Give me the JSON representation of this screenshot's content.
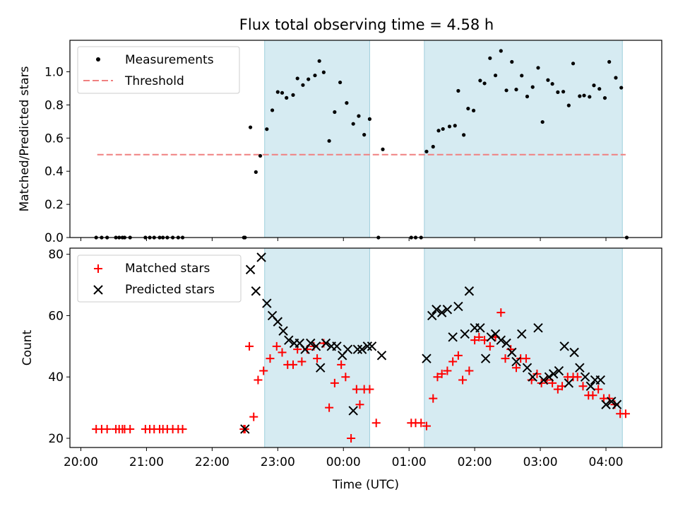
{
  "figure": {
    "title": "Flux total observing time = 4.58 h"
  },
  "chart_data": [
    {
      "type": "scatter",
      "ylabel": "Matched/Predicted stars",
      "xlim": [
        "19:50",
        "04:51"
      ],
      "ylim": [
        0,
        1.19
      ],
      "yticks": [
        0.0,
        0.2,
        0.4,
        0.6,
        0.8,
        1.0
      ],
      "ytick_labels": [
        "0.0",
        "0.2",
        "0.4",
        "0.6",
        "0.8",
        "1.0"
      ],
      "grid": false,
      "legend_position": "upper-left",
      "shaded_spans": [
        [
          "22:48",
          "00:24"
        ],
        [
          "01:14",
          "04:15"
        ]
      ],
      "threshold": {
        "name": "Threshold",
        "value": 0.5,
        "x_range": [
          "20:15",
          "04:18"
        ],
        "color": "#f08080"
      },
      "series": [
        {
          "name": "Measurements",
          "color": "#000000",
          "points": [
            [
              "20:14",
              0
            ],
            [
              "20:19",
              0
            ],
            [
              "20:24",
              0
            ],
            [
              "20:32",
              0
            ],
            [
              "20:35",
              0
            ],
            [
              "20:38",
              0
            ],
            [
              "20:40",
              0
            ],
            [
              "20:45",
              0
            ],
            [
              "20:59",
              0
            ],
            [
              "21:03",
              0
            ],
            [
              "21:07",
              0
            ],
            [
              "21:12",
              0
            ],
            [
              "21:15",
              0
            ],
            [
              "21:19",
              0
            ],
            [
              "21:24",
              0
            ],
            [
              "21:29",
              0
            ],
            [
              "21:33",
              0
            ],
            [
              "22:29",
              0
            ],
            [
              "22:30",
              0
            ],
            [
              "22:35",
              0.665
            ],
            [
              "22:40",
              0.395
            ],
            [
              "22:44",
              0.493
            ],
            [
              "22:50",
              0.654
            ],
            [
              "22:55",
              0.768
            ],
            [
              "23:00",
              0.878
            ],
            [
              "23:04",
              0.873
            ],
            [
              "23:08",
              0.843
            ],
            [
              "23:14",
              0.86
            ],
            [
              "23:18",
              0.96
            ],
            [
              "23:23",
              0.92
            ],
            [
              "23:28",
              0.955
            ],
            [
              "23:34",
              0.978
            ],
            [
              "23:38",
              1.065
            ],
            [
              "23:42",
              0.997
            ],
            [
              "23:47",
              0.583
            ],
            [
              "23:52",
              0.757
            ],
            [
              "23:57",
              0.936
            ],
            [
              "00:03",
              0.812
            ],
            [
              "00:09",
              0.686
            ],
            [
              "00:14",
              0.733
            ],
            [
              "00:19",
              0.62
            ],
            [
              "00:24",
              0.715
            ],
            [
              "00:32",
              0.0
            ],
            [
              "00:36",
              0.532
            ],
            [
              "01:02",
              0
            ],
            [
              "01:06",
              0
            ],
            [
              "01:11",
              0
            ],
            [
              "01:16",
              0.519
            ],
            [
              "01:22",
              0.548
            ],
            [
              "01:27",
              0.645
            ],
            [
              "01:31",
              0.655
            ],
            [
              "01:37",
              0.67
            ],
            [
              "01:42",
              0.675
            ],
            [
              "01:45",
              0.885
            ],
            [
              "01:50",
              0.619
            ],
            [
              "01:54",
              0.778
            ],
            [
              "01:59",
              0.766
            ],
            [
              "02:05",
              0.947
            ],
            [
              "02:09",
              0.93
            ],
            [
              "02:14",
              1.082
            ],
            [
              "02:19",
              0.978
            ],
            [
              "02:24",
              1.126
            ],
            [
              "02:29",
              0.888
            ],
            [
              "02:34",
              1.06
            ],
            [
              "02:38",
              0.893
            ],
            [
              "02:43",
              0.977
            ],
            [
              "02:48",
              0.851
            ],
            [
              "02:53",
              0.908
            ],
            [
              "02:58",
              1.024
            ],
            [
              "03:02",
              0.697
            ],
            [
              "03:07",
              0.95
            ],
            [
              "03:11",
              0.927
            ],
            [
              "03:16",
              0.877
            ],
            [
              "03:21",
              0.88
            ],
            [
              "03:26",
              0.797
            ],
            [
              "03:30",
              1.05
            ],
            [
              "03:36",
              0.853
            ],
            [
              "03:40",
              0.857
            ],
            [
              "03:45",
              0.849
            ],
            [
              "03:49",
              0.918
            ],
            [
              "03:54",
              0.897
            ],
            [
              "03:59",
              0.842
            ],
            [
              "04:03",
              1.06
            ],
            [
              "04:09",
              0.964
            ],
            [
              "04:14",
              0.904
            ],
            [
              "04:19",
              0
            ]
          ]
        }
      ]
    },
    {
      "type": "scatter",
      "xlabel": "Time (UTC)",
      "ylabel": "Count",
      "xlim": [
        "19:50",
        "04:51"
      ],
      "ylim": [
        17,
        82
      ],
      "xticks": [
        "20:00",
        "21:00",
        "22:00",
        "23:00",
        "00:00",
        "01:00",
        "02:00",
        "03:00",
        "04:00"
      ],
      "yticks": [
        20,
        40,
        60,
        80
      ],
      "ytick_labels": [
        "20",
        "40",
        "60",
        "80"
      ],
      "grid": false,
      "legend_position": "upper-left",
      "shaded_spans": [
        [
          "22:48",
          "00:24"
        ],
        [
          "01:14",
          "04:15"
        ]
      ],
      "series": [
        {
          "name": "Matched stars",
          "marker": "plus",
          "color": "#ff0000",
          "points": [
            [
              "20:14",
              23
            ],
            [
              "20:19",
              23
            ],
            [
              "20:24",
              23
            ],
            [
              "20:32",
              23
            ],
            [
              "20:35",
              23
            ],
            [
              "20:38",
              23
            ],
            [
              "20:40",
              23
            ],
            [
              "20:45",
              23
            ],
            [
              "20:59",
              23
            ],
            [
              "21:03",
              23
            ],
            [
              "21:07",
              23
            ],
            [
              "21:12",
              23
            ],
            [
              "21:15",
              23
            ],
            [
              "21:19",
              23
            ],
            [
              "21:24",
              23
            ],
            [
              "21:29",
              23
            ],
            [
              "21:33",
              23
            ],
            [
              "22:29",
              23
            ],
            [
              "22:30",
              23
            ],
            [
              "22:34",
              50
            ],
            [
              "22:38",
              27
            ],
            [
              "22:42",
              39
            ],
            [
              "22:47",
              42
            ],
            [
              "22:53",
              46
            ],
            [
              "22:59",
              50
            ],
            [
              "23:04",
              48
            ],
            [
              "23:09",
              44
            ],
            [
              "23:14",
              44
            ],
            [
              "23:18",
              49
            ],
            [
              "23:22",
              45
            ],
            [
              "23:27",
              49
            ],
            [
              "23:33",
              50
            ],
            [
              "23:36",
              46
            ],
            [
              "23:42",
              51
            ],
            [
              "23:47",
              30
            ],
            [
              "23:52",
              38
            ],
            [
              "23:58",
              44
            ],
            [
              "00:02",
              40
            ],
            [
              "00:07",
              20
            ],
            [
              "00:12",
              36
            ],
            [
              "00:15",
              31
            ],
            [
              "00:19",
              36
            ],
            [
              "00:24",
              36
            ],
            [
              "00:30",
              25
            ],
            [
              "01:02",
              25
            ],
            [
              "01:06",
              25
            ],
            [
              "01:11",
              25
            ],
            [
              "01:16",
              24
            ],
            [
              "01:22",
              33
            ],
            [
              "01:26",
              40
            ],
            [
              "01:30",
              41
            ],
            [
              "01:35",
              42
            ],
            [
              "01:40",
              45
            ],
            [
              "01:45",
              47
            ],
            [
              "01:49",
              39
            ],
            [
              "01:55",
              42
            ],
            [
              "02:00",
              52
            ],
            [
              "02:04",
              53
            ],
            [
              "02:09",
              52
            ],
            [
              "02:14",
              50
            ],
            [
              "02:19",
              53
            ],
            [
              "02:24",
              61
            ],
            [
              "02:28",
              46
            ],
            [
              "02:33",
              49
            ],
            [
              "02:38",
              43
            ],
            [
              "02:42",
              46
            ],
            [
              "02:47",
              46
            ],
            [
              "02:52",
              39
            ],
            [
              "02:57",
              41
            ],
            [
              "03:01",
              38
            ],
            [
              "03:06",
              39
            ],
            [
              "03:11",
              38
            ],
            [
              "03:16",
              36
            ],
            [
              "03:20",
              37
            ],
            [
              "03:25",
              40
            ],
            [
              "03:30",
              40
            ],
            [
              "03:34",
              40
            ],
            [
              "03:39",
              37
            ],
            [
              "03:44",
              34
            ],
            [
              "03:48",
              34
            ],
            [
              "03:53",
              36
            ],
            [
              "03:58",
              33
            ],
            [
              "04:03",
              33
            ],
            [
              "04:08",
              31
            ],
            [
              "04:13",
              28
            ],
            [
              "04:18",
              28
            ]
          ]
        },
        {
          "name": "Predicted stars",
          "marker": "x",
          "color": "#000000",
          "points": [
            [
              "22:30",
              23
            ],
            [
              "22:35",
              75
            ],
            [
              "22:40",
              68
            ],
            [
              "22:45",
              79
            ],
            [
              "22:50",
              64
            ],
            [
              "22:55",
              60
            ],
            [
              "23:00",
              58
            ],
            [
              "23:05",
              55
            ],
            [
              "23:10",
              52
            ],
            [
              "23:15",
              51
            ],
            [
              "23:20",
              51
            ],
            [
              "23:25",
              49
            ],
            [
              "23:30",
              51
            ],
            [
              "23:35",
              50
            ],
            [
              "23:39",
              43
            ],
            [
              "23:44",
              51
            ],
            [
              "23:49",
              50
            ],
            [
              "23:54",
              50
            ],
            [
              "23:59",
              47
            ],
            [
              "00:04",
              49
            ],
            [
              "00:09",
              29
            ],
            [
              "00:13",
              49
            ],
            [
              "00:17",
              49
            ],
            [
              "00:22",
              50
            ],
            [
              "00:26",
              50
            ],
            [
              "00:35",
              47
            ],
            [
              "01:16",
              46
            ],
            [
              "01:21",
              60
            ],
            [
              "01:25",
              62
            ],
            [
              "01:30",
              61
            ],
            [
              "01:35",
              62
            ],
            [
              "01:40",
              53
            ],
            [
              "01:45",
              63
            ],
            [
              "01:51",
              54
            ],
            [
              "01:55",
              68
            ],
            [
              "02:00",
              56
            ],
            [
              "02:05",
              56
            ],
            [
              "02:10",
              46
            ],
            [
              "02:15",
              53
            ],
            [
              "02:19",
              54
            ],
            [
              "02:24",
              52
            ],
            [
              "02:29",
              51
            ],
            [
              "02:34",
              48
            ],
            [
              "02:38",
              45
            ],
            [
              "02:43",
              54
            ],
            [
              "02:48",
              43
            ],
            [
              "02:53",
              40
            ],
            [
              "02:58",
              56
            ],
            [
              "03:03",
              39
            ],
            [
              "03:08",
              40
            ],
            [
              "03:12",
              41
            ],
            [
              "03:17",
              42
            ],
            [
              "03:22",
              50
            ],
            [
              "03:26",
              38
            ],
            [
              "03:31",
              48
            ],
            [
              "03:36",
              43
            ],
            [
              "03:41",
              40
            ],
            [
              "03:46",
              37
            ],
            [
              "03:50",
              39
            ],
            [
              "03:55",
              39
            ],
            [
              "04:00",
              31
            ],
            [
              "04:05",
              32
            ],
            [
              "04:10",
              31
            ]
          ]
        }
      ]
    }
  ]
}
